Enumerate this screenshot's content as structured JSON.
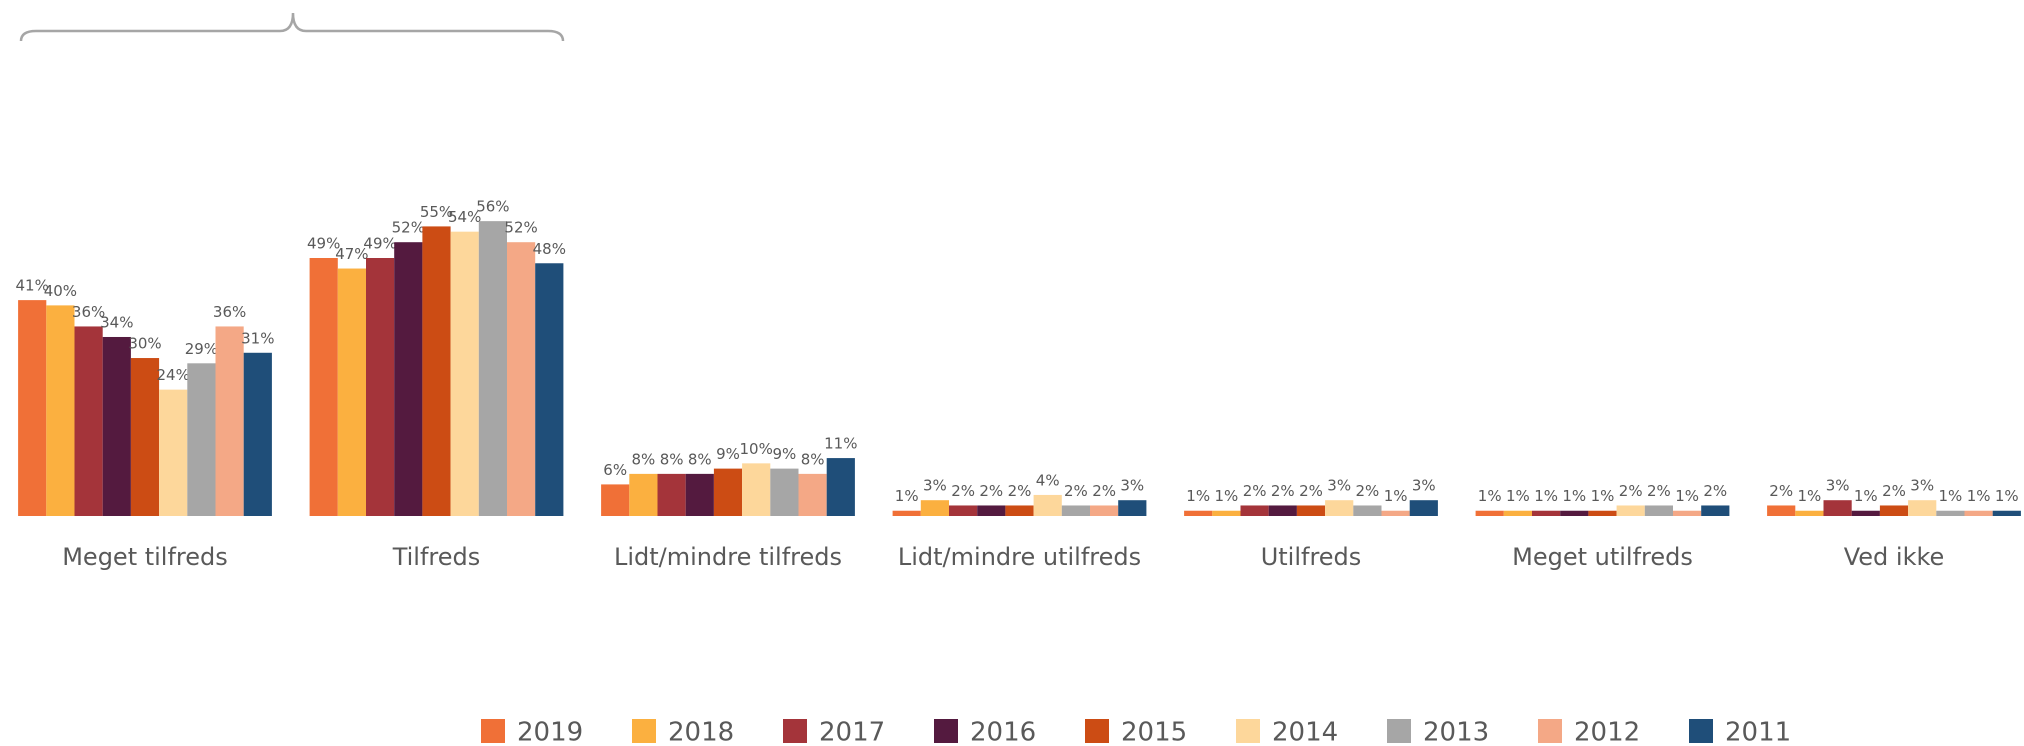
{
  "chart_data": {
    "type": "bar",
    "categories": [
      "Meget tilfreds",
      "Tilfreds",
      "Lidt/mindre tilfreds",
      "Lidt/mindre utilfreds",
      "Utilfreds",
      "Meget utilfreds",
      "Ved ikke"
    ],
    "series": [
      {
        "name": "2019",
        "color": "#f07037",
        "values": [
          41,
          49,
          6,
          1,
          1,
          1,
          2
        ],
        "value_labels": [
          "41%",
          "49%",
          "6%",
          "1%",
          "1%",
          "1%",
          "2%"
        ]
      },
      {
        "name": "2018",
        "color": "#fbb040",
        "values": [
          40,
          47,
          8,
          3,
          1,
          1,
          1
        ],
        "value_labels": [
          "40%",
          "47%",
          "8%",
          "3%",
          "1%",
          "1%",
          "1%"
        ]
      },
      {
        "name": "2017",
        "color": "#a4343a",
        "values": [
          36,
          49,
          8,
          2,
          2,
          1,
          3
        ],
        "value_labels": [
          "36%",
          "49%",
          "8%",
          "2%",
          "2%",
          "1%",
          "3%"
        ]
      },
      {
        "name": "2016",
        "color": "#541a3f",
        "values": [
          34,
          52,
          8,
          2,
          2,
          1,
          1
        ],
        "value_labels": [
          "34%",
          "52%",
          "8%",
          "2%",
          "2%",
          "1%",
          "1%"
        ]
      },
      {
        "name": "2015",
        "color": "#cc4c14",
        "values": [
          30,
          55,
          9,
          2,
          2,
          1,
          2
        ],
        "value_labels": [
          "30%",
          "55%",
          "9%",
          "2%",
          "2%",
          "1%",
          "2%"
        ]
      },
      {
        "name": "2014",
        "color": "#fdd79b",
        "values": [
          24,
          54,
          10,
          4,
          3,
          2,
          3
        ],
        "value_labels": [
          "24%",
          "54%",
          "10%",
          "4%",
          "3%",
          "2%",
          "3%"
        ]
      },
      {
        "name": "2013",
        "color": "#a6a6a6",
        "values": [
          29,
          56,
          9,
          2,
          2,
          2,
          1
        ],
        "value_labels": [
          "29%",
          "56%",
          "9%",
          "2%",
          "2%",
          "2%",
          "1%"
        ]
      },
      {
        "name": "2012",
        "color": "#f4a886",
        "values": [
          36,
          52,
          8,
          2,
          1,
          1,
          1
        ],
        "value_labels": [
          "36%",
          "52%",
          "8%",
          "2%",
          "1%",
          "1%",
          "1%"
        ]
      },
      {
        "name": "2011",
        "color": "#1f4e79",
        "values": [
          31,
          48,
          11,
          3,
          3,
          2,
          1
        ],
        "value_labels": [
          "31%",
          "48%",
          "11%",
          "3%",
          "3%",
          "2%",
          "1%"
        ]
      }
    ],
    "ylim": [
      0,
      98
    ]
  }
}
